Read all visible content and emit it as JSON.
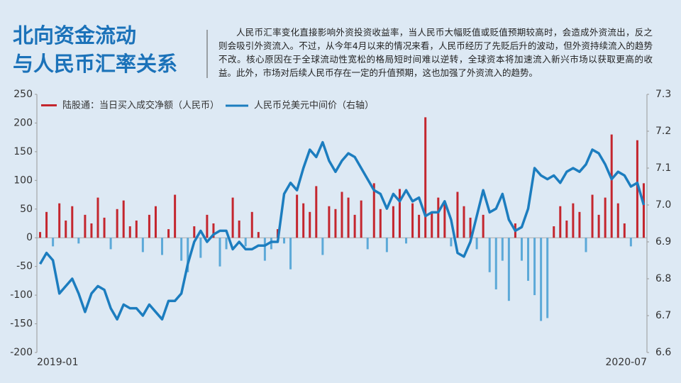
{
  "header": {
    "title_line1": "北向资金流动",
    "title_line2": "与人民币汇率关系",
    "paragraph": "人民币汇率变化直接影响外资投资收益率，当人民币大幅贬值或贬值预期较高时，会造成外资流出，反之则会吸引外资流入。不过，从今年4月以来的情况来看，人民币经历了先贬后升的波动，但外资持续流入的趋势不改。核心原因在于全球流动性宽松的格局短时间难以逆转，全球资本将加速流入新兴市场以获取更高的收益。此外，市场对后续人民币存在一定的升值预期，这也加强了外资流入的趋势。"
  },
  "chart_data": {
    "type": "bar-line",
    "categories": [
      "2019-01",
      null,
      null,
      null,
      null,
      null,
      null,
      null,
      null,
      null,
      null,
      null,
      null,
      null,
      null,
      null,
      null,
      null,
      null,
      null,
      null,
      null,
      null,
      null,
      null,
      null,
      null,
      null,
      null,
      null,
      null,
      null,
      null,
      null,
      null,
      null,
      null,
      null,
      null,
      null,
      null,
      null,
      null,
      null,
      null,
      null,
      null,
      null,
      null,
      null,
      null,
      null,
      null,
      null,
      null,
      null,
      null,
      null,
      null,
      null,
      null,
      null,
      null,
      null,
      null,
      null,
      null,
      null,
      null,
      null,
      null,
      null,
      null,
      null,
      null,
      null,
      null,
      null,
      null,
      null,
      null,
      null,
      null,
      null,
      null,
      null,
      null,
      null,
      null,
      null,
      null,
      null,
      null,
      null,
      "2020-07"
    ],
    "series": [
      {
        "name": "陆股通：当日买入成交净额（人民币）",
        "color": "#c4262e",
        "negative_color": "#5ca9d8",
        "values": [
          10,
          45,
          -15,
          60,
          30,
          55,
          -10,
          40,
          25,
          70,
          35,
          -20,
          50,
          65,
          20,
          30,
          -25,
          40,
          55,
          -30,
          15,
          75,
          -40,
          -60,
          20,
          -35,
          40,
          25,
          -50,
          -20,
          70,
          30,
          -15,
          45,
          10,
          -40,
          -20,
          15,
          -10,
          -55,
          75,
          60,
          45,
          90,
          -30,
          55,
          50,
          80,
          70,
          40,
          65,
          -20,
          95,
          50,
          -25,
          55,
          85,
          -10,
          60,
          40,
          210,
          45,
          70,
          60,
          -15,
          80,
          55,
          35,
          -20,
          40,
          -60,
          -90,
          -40,
          -110,
          25,
          -40,
          -75,
          -100,
          -145,
          -140,
          20,
          55,
          30,
          60,
          45,
          -25,
          75,
          40,
          70,
          180,
          60,
          25,
          -15,
          170,
          95
        ]
      },
      {
        "name": "人民币兑美元中间价（右轴）",
        "color": "#1c7dbf",
        "axis": "y2",
        "values": [
          6.84,
          6.87,
          6.85,
          6.76,
          6.78,
          6.8,
          6.76,
          6.71,
          6.76,
          6.78,
          6.77,
          6.72,
          6.69,
          6.73,
          6.72,
          6.72,
          6.7,
          6.73,
          6.71,
          6.69,
          6.74,
          6.74,
          6.76,
          6.84,
          6.9,
          6.93,
          6.9,
          6.92,
          6.93,
          6.93,
          6.88,
          6.9,
          6.88,
          6.88,
          6.89,
          6.89,
          6.9,
          6.9,
          7.03,
          7.06,
          7.04,
          7.1,
          7.15,
          7.13,
          7.17,
          7.12,
          7.09,
          7.12,
          7.14,
          7.13,
          7.1,
          7.07,
          7.04,
          7.03,
          6.99,
          7.03,
          7.01,
          7.04,
          7.01,
          7.02,
          6.97,
          6.98,
          6.98,
          7.01,
          6.96,
          6.87,
          6.86,
          6.9,
          6.97,
          7.04,
          6.98,
          6.99,
          7.03,
          6.96,
          6.93,
          6.94,
          6.99,
          7.1,
          7.08,
          7.07,
          7.08,
          7.06,
          7.09,
          7.1,
          7.09,
          7.11,
          7.15,
          7.14,
          7.11,
          7.07,
          7.09,
          7.08,
          7.05,
          7.06,
          7.0
        ]
      }
    ],
    "ylim": [
      -200,
      250
    ],
    "yticks": [
      -200,
      -150,
      -100,
      -50,
      0,
      50,
      100,
      150,
      200,
      250
    ],
    "y2lim": [
      6.6,
      7.3
    ],
    "y2ticks": [
      6.6,
      6.7,
      6.8,
      6.9,
      {
        "value": 7,
        "label": "7.0"
      },
      7.1,
      7.2,
      7.3
    ]
  }
}
